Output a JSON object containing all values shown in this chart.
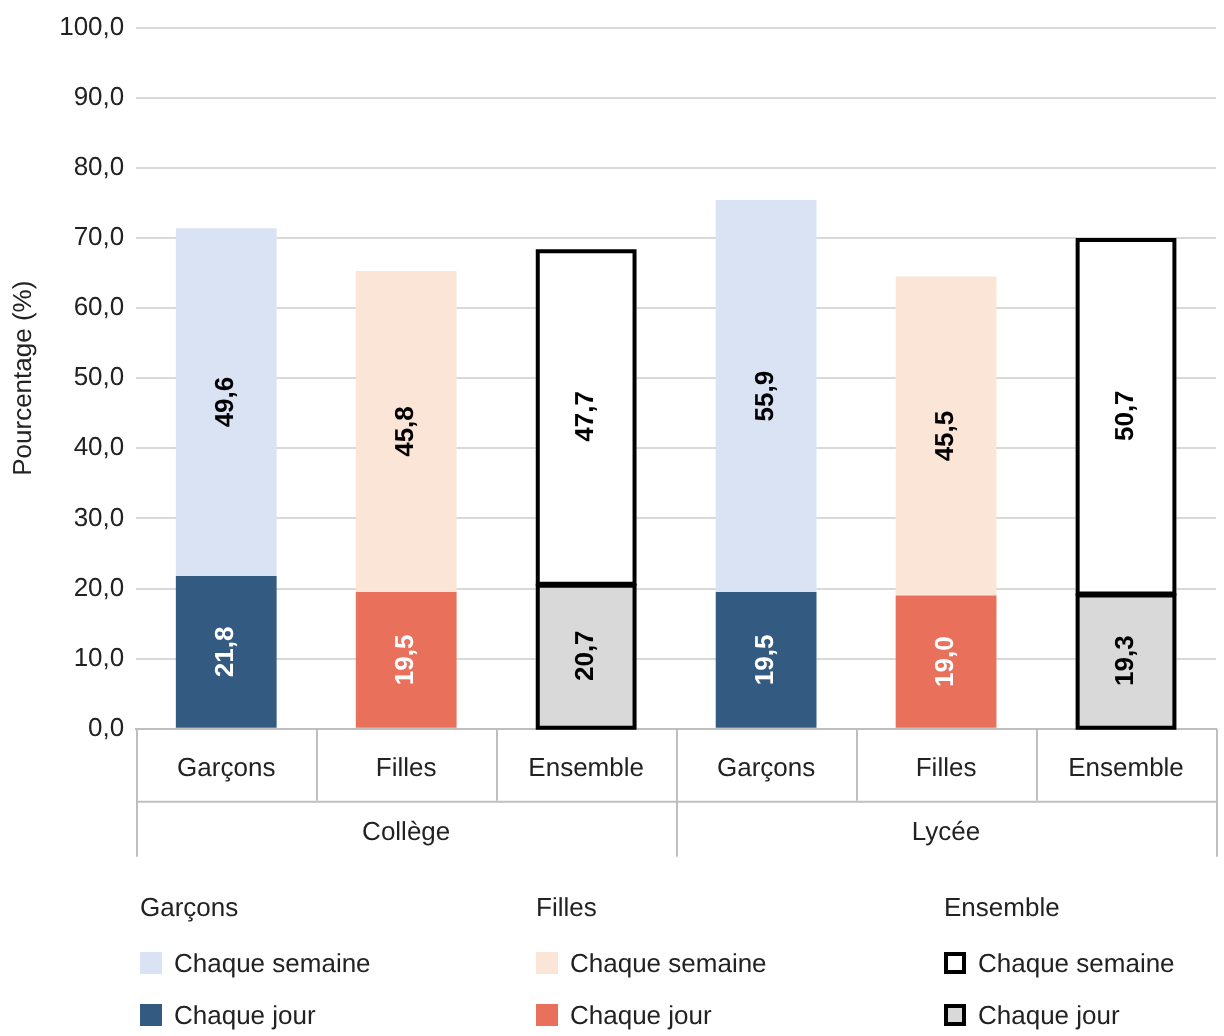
{
  "chart_data": {
    "type": "bar",
    "stacked": true,
    "ylabel": "Pourcentage (%)",
    "categories": [
      "Garçons",
      "Filles",
      "Ensemble",
      "Garçons",
      "Filles",
      "Ensemble"
    ],
    "series": [
      {
        "name": "Chaque jour",
        "color": "#335b82",
        "values": [
          21.8,
          null,
          null,
          19.5,
          null,
          null
        ],
        "value_labels": [
          "21,8",
          null,
          null,
          "19,5",
          null,
          null
        ]
      },
      {
        "name": "Chaque jour",
        "color": "#e9705b",
        "values": [
          null,
          19.5,
          null,
          null,
          19.0,
          null
        ],
        "value_labels": [
          null,
          "19,5",
          null,
          null,
          "19,0",
          null
        ]
      },
      {
        "name": "Chaque jour",
        "color": "#d9d9d9",
        "values": [
          null,
          null,
          20.7,
          null,
          null,
          19.3
        ],
        "value_labels": [
          null,
          null,
          "20,7",
          null,
          null,
          "19,3"
        ]
      },
      {
        "name": "Chaque semaine",
        "color": "#dae3f3",
        "values": [
          49.6,
          null,
          null,
          55.9,
          null,
          null
        ],
        "value_labels": [
          "49,6",
          null,
          null,
          "55,9",
          null,
          null
        ]
      },
      {
        "name": "Chaque semaine",
        "color": "#fbe5d6",
        "values": [
          null,
          45.8,
          null,
          null,
          45.5,
          null
        ],
        "value_labels": [
          null,
          "45,8",
          null,
          null,
          "45,5",
          null
        ]
      },
      {
        "name": "Chaque semaine",
        "color": "#ffffff",
        "values": [
          null,
          null,
          47.7,
          null,
          null,
          50.7
        ],
        "value_labels": [
          null,
          null,
          "47,7",
          null,
          null,
          "50,7"
        ]
      }
    ],
    "ylim": [
      0,
      100
    ],
    "yticks": [
      {
        "value": 0,
        "label": "0,0"
      },
      {
        "value": 10,
        "label": "10,0"
      },
      {
        "value": 20,
        "label": "20,0"
      },
      {
        "value": 30,
        "label": "30,0"
      },
      {
        "value": 40,
        "label": "40,0"
      },
      {
        "value": 50,
        "label": "50,0"
      },
      {
        "value": 60,
        "label": "60,0"
      },
      {
        "value": 70,
        "label": "70,0"
      },
      {
        "value": 80,
        "label": "80,0"
      },
      {
        "value": 90,
        "label": "90,0"
      },
      {
        "value": 100,
        "label": "100,0"
      }
    ],
    "grid": "y",
    "legend": "bottom",
    "annotations": [
      "Collège",
      "Lycée",
      "Garçons",
      "Filles",
      "Ensemble"
    ]
  }
}
